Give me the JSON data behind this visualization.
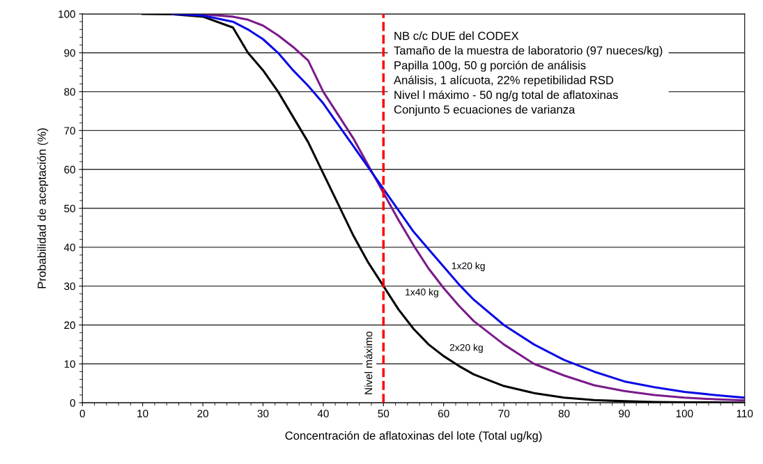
{
  "chart_data": {
    "type": "line",
    "xlabel": "Concentración de aflatoxinas del lote (Total ug/kg)",
    "ylabel": "Probabilidad de aceptación (%)",
    "x": [
      10,
      15,
      20,
      25,
      27.5,
      30,
      32.5,
      35,
      37.5,
      40,
      42.5,
      45,
      47.5,
      50,
      52.5,
      55,
      57.5,
      60,
      62.5,
      65,
      70,
      75,
      80,
      85,
      90,
      95,
      100,
      105,
      110
    ],
    "series": [
      {
        "name": "2x20 kg",
        "color": "#000000",
        "values": [
          100,
          99.9,
          99.3,
          96.5,
          90,
          85.5,
          80,
          73.5,
          67,
          59,
          51,
          43,
          36,
          30,
          24,
          19,
          15,
          12,
          9.5,
          7.3,
          4.3,
          2.5,
          1.3,
          0.7,
          0.4,
          0.2,
          0.1,
          0.1,
          0
        ]
      },
      {
        "name": "1x40 kg",
        "color": "#7b1a8a",
        "values": [
          null,
          100,
          99.9,
          99.3,
          98.5,
          97,
          94.5,
          91.5,
          88,
          80,
          74,
          68,
          61,
          54,
          47,
          40.5,
          34.5,
          29.5,
          25,
          21,
          15,
          10,
          7,
          4.5,
          3,
          2,
          1.3,
          0.9,
          0.6
        ]
      },
      {
        "name": "1x20 kg",
        "color": "#0a0ae6",
        "values": [
          null,
          100,
          99.6,
          98,
          96,
          93.5,
          90,
          85.5,
          81.5,
          77,
          71.5,
          66,
          60.5,
          55,
          49.5,
          44,
          39.5,
          35,
          30.5,
          26.5,
          20,
          15,
          11,
          8,
          5.5,
          4,
          2.8,
          2,
          1.3
        ]
      }
    ],
    "xlim": [
      0,
      110
    ],
    "xticks": [
      0,
      10,
      20,
      30,
      40,
      50,
      60,
      70,
      80,
      90,
      100,
      110
    ],
    "ylim": [
      0,
      100
    ],
    "yticks": [
      0,
      10,
      20,
      30,
      40,
      50,
      60,
      70,
      80,
      90,
      100
    ],
    "grid": "y",
    "legend": false,
    "marker": "none",
    "line_style": "solid",
    "ref_lines": [
      {
        "axis": "x",
        "value": 50,
        "label": "Nivel máximo",
        "color": "#ff0000",
        "line_style": "dashed"
      }
    ],
    "annotations": [
      "NB c/c DUE del CODEX",
      "Tamaño de la muestra de laboratorio (97 nueces/kg)",
      "Papilla 100g, 50 g porción de análisis",
      "Análisis, 1 alícuota, 22% repetibilidad RSD",
      "Nivel l máximo - 50 ng/g total de aflatoxinas",
      "Conjunto 5 ecuaciones de varianza"
    ]
  }
}
